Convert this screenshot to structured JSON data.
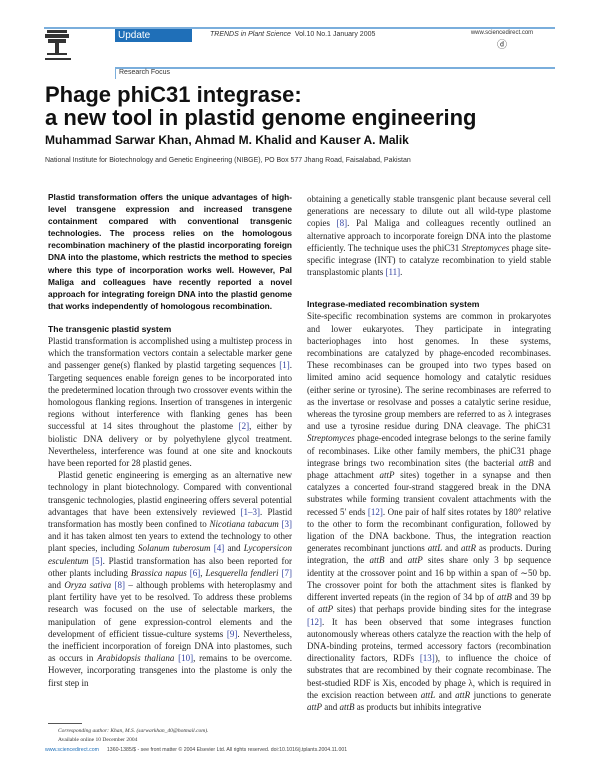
{
  "header": {
    "badge": "Update",
    "journal_italic": "TRENDS in Plant Science",
    "journal_rest": "Vol.10 No.1 January 2005",
    "section": "Research Focus",
    "publisher_logo": "Elsevier",
    "sd_logo": "www.sciencedirect.com",
    "accent": "#1f6fb8"
  },
  "article": {
    "title_line1": "Phage phiC31 integrase:",
    "title_line2": "a new tool in plastid genome engineering",
    "authors": "Muhammad Sarwar Khan, Ahmad M. Khalid and Kauser A. Malik",
    "affiliation": "National Institute for Biotechnology and Genetic Engineering (NIBGE), PO Box 577 Jhang Road, Faisalabad, Pakistan",
    "abstract": "Plastid transformation offers the unique advantages of high-level transgene expression and increased transgene containment compared with conventional transgenic technologies. The process relies on the homologous recombination machinery of the plastid incorporating foreign DNA into the plastome, which restricts the method to species where this type of incorporation works well. However, Pal Maliga and colleagues have recently reported a novel approach for integrating foreign DNA into the plastid genome that works independently of homologous recombination.",
    "left_blocks": [
      {
        "type": "h",
        "text": "The transgenic plastid system"
      },
      {
        "type": "p",
        "segs": [
          [
            "Plastid transformation is accomplished using a multistep process in which the transformation vectors contain a selectable marker gene and passenger gene(s) flanked by plastid targeting sequences ",
            ""
          ],
          [
            "[1]",
            "r"
          ],
          [
            ". Targeting sequences enable foreign genes to be incorporated into the predetermined location through two crossover events within the homologous flanking regions. Insertion of transgenes in intergenic regions without interference with flanking genes has been successful at 14 sites throughout the plastome ",
            ""
          ],
          [
            "[2]",
            "r"
          ],
          [
            ", either by biolistic DNA delivery or by polyethylene glycol treatment. Nevertheless, interference was found at one site and knockouts have been reported for 28 plastid genes.",
            ""
          ]
        ]
      },
      {
        "type": "pi",
        "segs": [
          [
            "Plastid genetic engineering is emerging as an alternative new technology in plant biotechnology. Compared with conventional transgenic technologies, plastid engineering offers several potential advantages that have been extensively reviewed ",
            ""
          ],
          [
            "[1–3]",
            "r"
          ],
          [
            ". Plastid transformation has mostly been confined to ",
            ""
          ],
          [
            "Nicotiana tabacum",
            "i"
          ],
          [
            " ",
            ""
          ],
          [
            "[3]",
            "r"
          ],
          [
            " and it has taken almost ten years to extend the technology to other plant species, including ",
            ""
          ],
          [
            "Solanum tuberosum",
            "i"
          ],
          [
            " ",
            ""
          ],
          [
            "[4]",
            "r"
          ],
          [
            " and ",
            ""
          ],
          [
            "Lycopersicon esculentum",
            "i"
          ],
          [
            " ",
            ""
          ],
          [
            "[5]",
            "r"
          ],
          [
            ". Plastid transformation has also been reported for other plants including ",
            ""
          ],
          [
            "Brassica napus",
            "i"
          ],
          [
            " ",
            ""
          ],
          [
            "[6]",
            "r"
          ],
          [
            ", ",
            ""
          ],
          [
            "Lesquerella fendleri",
            "i"
          ],
          [
            " ",
            ""
          ],
          [
            "[7]",
            "r"
          ],
          [
            " and ",
            ""
          ],
          [
            "Oryza sativa",
            "i"
          ],
          [
            " ",
            ""
          ],
          [
            "[8]",
            "r"
          ],
          [
            " – although problems with heteroplasmy and plant fertility have yet to be resolved. To address these problems research was focused on the use of selectable markers, the manipulation of gene expression-control elements and the development of efficient tissue-culture systems ",
            ""
          ],
          [
            "[9]",
            "r"
          ],
          [
            ". Nevertheless, the inefficient incorporation of foreign DNA into plastomes, such as occurs in ",
            ""
          ],
          [
            "Arabidopsis thaliana",
            "i"
          ],
          [
            " ",
            ""
          ],
          [
            "[10]",
            "r"
          ],
          [
            ", remains to be overcome. However, incorporating transgenes into the plastome is only the first step in",
            ""
          ]
        ]
      }
    ],
    "right_blocks": [
      {
        "type": "p",
        "segs": [
          [
            "obtaining a genetically stable transgenic plant because several cell generations are necessary to dilute out all wild-type plastome copies ",
            ""
          ],
          [
            "[8]",
            "r"
          ],
          [
            ". Pal Maliga and colleagues recently outlined an alternative approach to incorporate foreign DNA into the plastome efficiently. The technique uses the phiC31 ",
            ""
          ],
          [
            "Streptomyces",
            "i"
          ],
          [
            " phage site-specific integrase (INT) to catalyze recombination to yield stable transplastomic plants ",
            ""
          ],
          [
            "[11]",
            "r"
          ],
          [
            ".",
            ""
          ]
        ]
      },
      {
        "type": "h",
        "text": "Integrase-mediated recombination system"
      },
      {
        "type": "p",
        "segs": [
          [
            "Site-specific recombination systems are common in prokaryotes and lower eukaryotes. They participate in integrating bacteriophages into host genomes. In these systems, recombinations are catalyzed by phage-encoded recombinases. These recombinases can be grouped into two types based on limited amino acid sequence homology and catalytic residues (either serine or tyrosine). The serine recombinases are referred to as the invertase or resolvase and posses a catalytic serine residue, whereas the tyrosine group members are referred to as λ integrases and use a tyrosine residue during DNA cleavage. The phiC31 ",
            ""
          ],
          [
            "Streptomyces",
            "i"
          ],
          [
            " phage-encoded integrase belongs to the serine family of recombinases. Like other family members, the phiC31 phage integrase brings two recombination sites (the bacterial ",
            ""
          ],
          [
            "attB",
            "i"
          ],
          [
            " and phage attachment ",
            ""
          ],
          [
            "attP",
            "i"
          ],
          [
            " sites) together in a synapse and then catalyzes a concerted four-strand staggered break in the DNA substrates while forming transient covalent attachments with the recessed 5′ ends ",
            ""
          ],
          [
            "[12]",
            "r"
          ],
          [
            ". One pair of half sites rotates by 180° relative to the other to form the recombinant configuration, followed by ligation of the DNA backbone. Thus, the integration reaction generates recombinant junctions ",
            ""
          ],
          [
            "attL",
            "i"
          ],
          [
            " and ",
            ""
          ],
          [
            "attR",
            "i"
          ],
          [
            " as products. During integration, the ",
            ""
          ],
          [
            "attB",
            "i"
          ],
          [
            " and ",
            ""
          ],
          [
            "attP",
            "i"
          ],
          [
            " sites share only 3 bp sequence identity at the crossover point and 16 bp within a span of ∼50 bp. The crossover point for both the attachment sites is flanked by different inverted repeats (in the region of 34 bp of ",
            ""
          ],
          [
            "attB",
            "i"
          ],
          [
            " and 39 bp of ",
            ""
          ],
          [
            "attP",
            "i"
          ],
          [
            " sites) that perhaps provide binding sites for the integrase ",
            ""
          ],
          [
            "[12]",
            "r"
          ],
          [
            ". It has been observed that some integrases function autonomously whereas others catalyze the reaction with the help of DNA-binding proteins, termed accessory factors (recombination directionality factors, RDFs ",
            ""
          ],
          [
            "[13]",
            "r"
          ],
          [
            "), to influence the choice of substrates that are recombined by their cognate recombinase. The best-studied RDF is Xis, encoded by phage λ, which is required in the excision reaction between ",
            ""
          ],
          [
            "attL",
            "i"
          ],
          [
            " and ",
            ""
          ],
          [
            "attR",
            "i"
          ],
          [
            " junctions to generate ",
            ""
          ],
          [
            "attP",
            "i"
          ],
          [
            " and ",
            ""
          ],
          [
            "attB",
            "i"
          ],
          [
            " as products but inhibits integrative",
            ""
          ]
        ]
      }
    ]
  },
  "footnote": {
    "corresponding": "Corresponding author: Khan, M.S. (sarwarkhan_40@hotmail.com).",
    "available": "Available online 10 December 2004"
  },
  "footer": {
    "url": "www.sciencedirect.com",
    "legal": "1360-1385/$ - see front matter © 2004 Elsevier Ltd. All rights reserved. doi:10.1016/j.tplants.2004.11.001"
  }
}
